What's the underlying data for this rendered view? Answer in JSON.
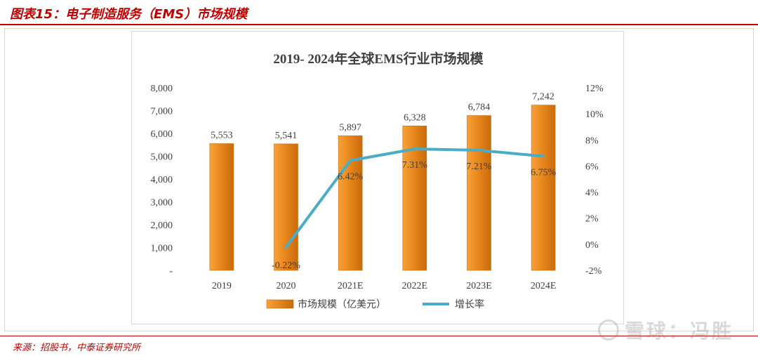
{
  "figure": {
    "title": "图表15：电子制造服务（EMS）市场规模",
    "source": "来源：招股书，中泰证券研究所",
    "watermark": "雪球：冯胜"
  },
  "colors": {
    "bar_top": "#f6a33a",
    "bar_mid": "#e8871c",
    "bar_edge": "#c96a0c",
    "line": "#4bacc6",
    "brand_red": "#c00000"
  },
  "chart_data": {
    "type": "bar",
    "title": "2019- 2024年全球EMS行业市场规模",
    "categories": [
      "2019",
      "2020",
      "2021E",
      "2022E",
      "2023E",
      "2024E"
    ],
    "series": [
      {
        "name": "市场规模（亿美元）",
        "type": "bar",
        "axis": "left",
        "values": [
          5553,
          5541,
          5897,
          6328,
          6784,
          7242
        ],
        "labels": [
          "5,553",
          "5,541",
          "5,897",
          "6,328",
          "6,784",
          "7,242"
        ]
      },
      {
        "name": "增长率",
        "type": "line",
        "axis": "right",
        "values": [
          null,
          -0.22,
          6.42,
          7.31,
          7.21,
          6.75
        ],
        "labels": [
          "",
          "-0.22%",
          "6.42%",
          "7.31%",
          "7.21%",
          "6.75%"
        ]
      }
    ],
    "ylim": [
      0,
      8000
    ],
    "y_ticks": [
      0,
      1000,
      2000,
      3000,
      4000,
      5000,
      6000,
      7000,
      8000
    ],
    "y_tick_labels": [
      "-",
      "1,000",
      "2,000",
      "3,000",
      "4,000",
      "5,000",
      "6,000",
      "7,000",
      "8,000"
    ],
    "y2lim": [
      -2,
      12
    ],
    "y2_ticks": [
      -2,
      0,
      2,
      4,
      6,
      8,
      10,
      12
    ],
    "y2_tick_labels": [
      "-2%",
      "0%",
      "2%",
      "4%",
      "6%",
      "8%",
      "10%",
      "12%"
    ],
    "legend": "bottom-center",
    "grid": false
  }
}
